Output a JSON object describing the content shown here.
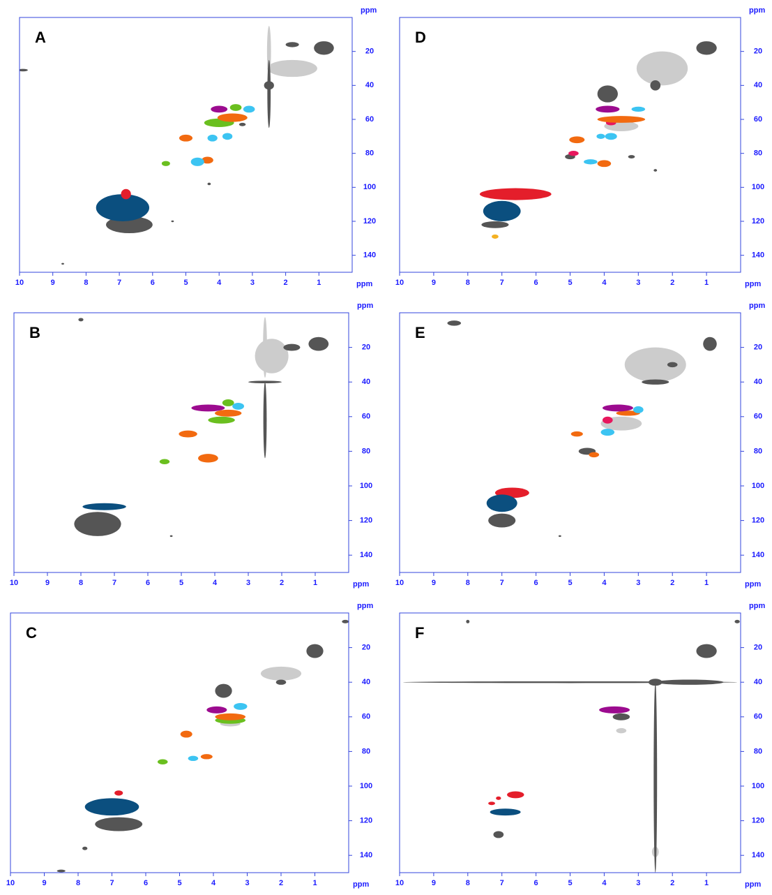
{
  "chart_data": [
    {
      "type": "scatter",
      "title": "A",
      "x_label": "ppm",
      "y_label": "ppm",
      "xlim": [
        10,
        0
      ],
      "ylim": [
        0,
        150
      ],
      "xticks": [
        10,
        9,
        8,
        7,
        6,
        5,
        4,
        3,
        2,
        1
      ],
      "yticks": [
        20,
        40,
        60,
        80,
        100,
        120,
        140
      ],
      "series": [
        {
          "color": "#cccccc",
          "x": [
            1.8,
            2.5
          ],
          "y": [
            30,
            20
          ],
          "xspan": [
            1.5,
            0.12
          ],
          "yspan": [
            10,
            30
          ]
        },
        {
          "color": "#555555",
          "x": [
            6.7,
            2.5,
            2.5,
            0.85,
            1.8,
            9.9,
            3.3,
            4.3,
            5.4,
            8.7
          ],
          "y": [
            122,
            45,
            40,
            18,
            16,
            31,
            63,
            98,
            120,
            145
          ],
          "xspan": [
            1.4,
            0.1,
            0.3,
            0.6,
            0.4,
            0.3,
            0.2,
            0.1,
            0.08,
            0.08
          ],
          "yspan": [
            10,
            40,
            5,
            8,
            3,
            1.5,
            2,
            1.5,
            1,
            1
          ]
        },
        {
          "color": "#0b4f7f",
          "x": [
            6.9
          ],
          "y": [
            112
          ],
          "xspan": [
            1.6
          ],
          "yspan": [
            16
          ]
        },
        {
          "color": "#e41e2b",
          "x": [
            6.8
          ],
          "y": [
            104
          ],
          "xspan": [
            0.3
          ],
          "yspan": [
            6
          ]
        },
        {
          "color": "#6abf1f",
          "x": [
            5.6,
            4.0,
            3.5
          ],
          "y": [
            86,
            62,
            53
          ],
          "xspan": [
            0.25,
            0.9,
            0.35
          ],
          "yspan": [
            3,
            5,
            4
          ]
        },
        {
          "color": "#f26a10",
          "x": [
            5.0,
            4.35,
            3.6
          ],
          "y": [
            71,
            84,
            59
          ],
          "xspan": [
            0.4,
            0.35,
            0.9
          ],
          "yspan": [
            4,
            4,
            5
          ]
        },
        {
          "color": "#3cc4f2",
          "x": [
            4.65,
            4.2,
            3.75,
            3.1
          ],
          "y": [
            85,
            71,
            70,
            54
          ],
          "xspan": [
            0.4,
            0.3,
            0.3,
            0.35
          ],
          "yspan": [
            5,
            4,
            4,
            4
          ]
        },
        {
          "color": "#9c0b8f",
          "x": [
            4.0
          ],
          "y": [
            54
          ],
          "xspan": [
            0.5
          ],
          "yspan": [
            4
          ]
        }
      ]
    },
    {
      "type": "scatter",
      "title": "B",
      "x_label": "ppm",
      "y_label": "ppm",
      "xlim": [
        10,
        0
      ],
      "ylim": [
        0,
        150
      ],
      "xticks": [
        10,
        9,
        8,
        7,
        6,
        5,
        4,
        3,
        2,
        1
      ],
      "yticks": [
        20,
        40,
        60,
        80,
        100,
        120,
        140
      ],
      "series": [
        {
          "color": "#cccccc",
          "x": [
            2.3,
            2.5
          ],
          "y": [
            25,
            20
          ],
          "xspan": [
            1.0,
            0.12
          ],
          "yspan": [
            20,
            35
          ]
        },
        {
          "color": "#555555",
          "x": [
            7.5,
            2.5,
            2.5,
            0.9,
            1.7,
            8.0,
            5.3
          ],
          "y": [
            122,
            62,
            40,
            18,
            20,
            4,
            129
          ],
          "xspan": [
            1.4,
            0.1,
            1.0,
            0.6,
            0.5,
            0.15,
            0.08
          ],
          "yspan": [
            14,
            44,
            1.5,
            8,
            4,
            2,
            1
          ]
        },
        {
          "color": "#0b4f7f",
          "x": [
            7.3
          ],
          "y": [
            112
          ],
          "xspan": [
            1.3
          ],
          "yspan": [
            4
          ]
        },
        {
          "color": "#6abf1f",
          "x": [
            5.5,
            3.8,
            3.6
          ],
          "y": [
            86,
            62,
            52
          ],
          "xspan": [
            0.3,
            0.8,
            0.35
          ],
          "yspan": [
            3,
            4,
            4
          ]
        },
        {
          "color": "#f26a10",
          "x": [
            4.8,
            4.2,
            3.6
          ],
          "y": [
            70,
            84,
            58
          ],
          "xspan": [
            0.55,
            0.6,
            0.8
          ],
          "yspan": [
            4,
            5,
            4
          ]
        },
        {
          "color": "#3cc4f2",
          "x": [
            3.3
          ],
          "y": [
            54
          ],
          "xspan": [
            0.35
          ],
          "yspan": [
            4
          ]
        },
        {
          "color": "#9c0b8f",
          "x": [
            4.2
          ],
          "y": [
            55
          ],
          "xspan": [
            1.0
          ],
          "yspan": [
            4
          ]
        }
      ]
    },
    {
      "type": "scatter",
      "title": "C",
      "x_label": "ppm",
      "y_label": "ppm",
      "xlim": [
        10,
        0
      ],
      "ylim": [
        0,
        150
      ],
      "xticks": [
        10,
        9,
        8,
        7,
        6,
        5,
        4,
        3,
        2,
        1
      ],
      "yticks": [
        20,
        40,
        60,
        80,
        100,
        120,
        140
      ],
      "series": [
        {
          "color": "#cccccc",
          "x": [
            2.0,
            3.5
          ],
          "y": [
            35,
            64
          ],
          "xspan": [
            1.2,
            0.6
          ],
          "yspan": [
            8,
            3
          ]
        },
        {
          "color": "#555555",
          "x": [
            6.8,
            3.7,
            8.5,
            7.8,
            1.0,
            0.1,
            2.0
          ],
          "y": [
            122,
            45,
            149,
            136,
            22,
            5,
            40
          ],
          "xspan": [
            1.4,
            0.5,
            0.25,
            0.15,
            0.5,
            0.2,
            0.3
          ],
          "yspan": [
            8,
            8,
            1.5,
            2,
            8,
            2,
            3
          ]
        },
        {
          "color": "#0b4f7f",
          "x": [
            7.0
          ],
          "y": [
            112
          ],
          "xspan": [
            1.6
          ],
          "yspan": [
            10
          ]
        },
        {
          "color": "#e41e2b",
          "x": [
            6.8
          ],
          "y": [
            104
          ],
          "xspan": [
            0.25
          ],
          "yspan": [
            3
          ]
        },
        {
          "color": "#6abf1f",
          "x": [
            5.5,
            3.5
          ],
          "y": [
            86,
            62
          ],
          "xspan": [
            0.3,
            0.9
          ],
          "yspan": [
            3,
            4
          ]
        },
        {
          "color": "#f26a10",
          "x": [
            4.8,
            4.2,
            3.5
          ],
          "y": [
            70,
            83,
            60
          ],
          "xspan": [
            0.35,
            0.35,
            0.9
          ],
          "yspan": [
            4,
            3,
            4
          ]
        },
        {
          "color": "#3cc4f2",
          "x": [
            4.6,
            3.2
          ],
          "y": [
            84,
            54
          ],
          "xspan": [
            0.3,
            0.4
          ],
          "yspan": [
            3,
            4
          ]
        },
        {
          "color": "#9c0b8f",
          "x": [
            3.9
          ],
          "y": [
            56
          ],
          "xspan": [
            0.6
          ],
          "yspan": [
            4
          ]
        }
      ]
    },
    {
      "type": "scatter",
      "title": "D",
      "x_label": "ppm",
      "y_label": "ppm",
      "xlim": [
        10,
        0
      ],
      "ylim": [
        0,
        150
      ],
      "xticks": [
        10,
        9,
        8,
        7,
        6,
        5,
        4,
        3,
        2,
        1
      ],
      "yticks": [
        20,
        40,
        60,
        80,
        100,
        120,
        140
      ],
      "series": [
        {
          "color": "#cccccc",
          "x": [
            2.3,
            3.5
          ],
          "y": [
            30,
            64
          ],
          "xspan": [
            1.5,
            1.0
          ],
          "yspan": [
            20,
            6
          ]
        },
        {
          "color": "#555555",
          "x": [
            7.2,
            3.9,
            5.0,
            2.5,
            1.0,
            3.2,
            2.5
          ],
          "y": [
            122,
            45,
            82,
            40,
            18,
            82,
            90
          ],
          "xspan": [
            0.8,
            0.6,
            0.3,
            0.3,
            0.6,
            0.2,
            0.1
          ],
          "yspan": [
            4,
            10,
            3,
            6,
            8,
            2,
            1.5
          ]
        },
        {
          "color": "#e41e2b",
          "x": [
            6.6
          ],
          "y": [
            104
          ],
          "xspan": [
            2.1
          ],
          "yspan": [
            7
          ]
        },
        {
          "color": "#0b4f7f",
          "x": [
            7.0
          ],
          "y": [
            114
          ],
          "xspan": [
            1.1
          ],
          "yspan": [
            12
          ]
        },
        {
          "color": "#f4b122",
          "x": [
            7.2
          ],
          "y": [
            129
          ],
          "xspan": [
            0.2
          ],
          "yspan": [
            2.5
          ]
        },
        {
          "color": "#e8175d",
          "x": [
            4.9,
            3.8
          ],
          "y": [
            80,
            62
          ],
          "xspan": [
            0.3,
            0.3
          ],
          "yspan": [
            3,
            3
          ]
        },
        {
          "color": "#f26a10",
          "x": [
            4.8,
            4.0,
            3.5
          ],
          "y": [
            72,
            86,
            60
          ],
          "xspan": [
            0.45,
            0.4,
            1.4
          ],
          "yspan": [
            4,
            4,
            4
          ]
        },
        {
          "color": "#3cc4f2",
          "x": [
            4.4,
            3.8,
            4.1,
            3.0
          ],
          "y": [
            85,
            70,
            70,
            54
          ],
          "xspan": [
            0.4,
            0.35,
            0.25,
            0.4
          ],
          "yspan": [
            3,
            4,
            3,
            3
          ]
        },
        {
          "color": "#9c0b8f",
          "x": [
            3.9
          ],
          "y": [
            54
          ],
          "xspan": [
            0.7
          ],
          "yspan": [
            4
          ]
        }
      ]
    },
    {
      "type": "scatter",
      "title": "E",
      "x_label": "ppm",
      "y_label": "ppm",
      "xlim": [
        10,
        0
      ],
      "ylim": [
        0,
        150
      ],
      "xticks": [
        10,
        9,
        8,
        7,
        6,
        5,
        4,
        3,
        2,
        1
      ],
      "yticks": [
        20,
        40,
        60,
        80,
        100,
        120,
        140
      ],
      "series": [
        {
          "color": "#cccccc",
          "x": [
            2.5,
            3.5
          ],
          "y": [
            30,
            64
          ],
          "xspan": [
            1.8,
            1.2
          ],
          "yspan": [
            20,
            8
          ]
        },
        {
          "color": "#555555",
          "x": [
            7.0,
            8.4,
            2.5,
            2.0,
            0.9,
            4.5,
            5.3
          ],
          "y": [
            120,
            6,
            40,
            30,
            18,
            80,
            129
          ],
          "xspan": [
            0.8,
            0.4,
            0.8,
            0.3,
            0.4,
            0.5,
            0.08
          ],
          "yspan": [
            8,
            3,
            3,
            3,
            8,
            4,
            1
          ]
        },
        {
          "color": "#e41e2b",
          "x": [
            6.7
          ],
          "y": [
            104
          ],
          "xspan": [
            1.0
          ],
          "yspan": [
            6
          ]
        },
        {
          "color": "#0b4f7f",
          "x": [
            7.0
          ],
          "y": [
            110
          ],
          "xspan": [
            0.9
          ],
          "yspan": [
            10
          ]
        },
        {
          "color": "#e8175d",
          "x": [
            3.9
          ],
          "y": [
            62
          ],
          "xspan": [
            0.3
          ],
          "yspan": [
            4
          ]
        },
        {
          "color": "#f26a10",
          "x": [
            4.8,
            4.3,
            3.3
          ],
          "y": [
            70,
            82,
            58
          ],
          "xspan": [
            0.35,
            0.3,
            0.7
          ],
          "yspan": [
            3,
            3,
            3
          ]
        },
        {
          "color": "#3cc4f2",
          "x": [
            3.9,
            3.0
          ],
          "y": [
            69,
            56
          ],
          "xspan": [
            0.4,
            0.3
          ],
          "yspan": [
            4,
            4
          ]
        },
        {
          "color": "#9c0b8f",
          "x": [
            3.6
          ],
          "y": [
            55
          ],
          "xspan": [
            0.9
          ],
          "yspan": [
            4
          ]
        }
      ]
    },
    {
      "type": "scatter",
      "title": "F",
      "x_label": "ppm",
      "y_label": "ppm",
      "xlim": [
        10,
        0
      ],
      "ylim": [
        0,
        150
      ],
      "xticks": [
        10,
        9,
        8,
        7,
        6,
        5,
        4,
        3,
        2,
        1
      ],
      "yticks": [
        20,
        40,
        60,
        80,
        100,
        120,
        140
      ],
      "series": [
        {
          "color": "#cccccc",
          "x": [
            2.5,
            3.5
          ],
          "y": [
            138,
            68
          ],
          "xspan": [
            0.2,
            0.3
          ],
          "yspan": [
            6,
            3
          ]
        },
        {
          "color": "#555555",
          "x": [
            5.0,
            1.5,
            2.5,
            2.5,
            7.1,
            8.0,
            1.0,
            3.5,
            0.1
          ],
          "y": [
            40,
            40,
            95,
            40,
            128,
            5,
            22,
            60,
            5
          ],
          "xspan": [
            9.8,
            2.0,
            0.1,
            0.4,
            0.3,
            0.1,
            0.6,
            0.5,
            0.15
          ],
          "yspan": [
            1,
            3,
            110,
            4,
            4,
            2,
            8,
            4,
            2
          ]
        },
        {
          "color": "#e41e2b",
          "x": [
            6.6,
            7.1,
            7.3
          ],
          "y": [
            105,
            107,
            110
          ],
          "xspan": [
            0.5,
            0.15,
            0.2
          ],
          "yspan": [
            4,
            2,
            2
          ]
        },
        {
          "color": "#0b4f7f",
          "x": [
            6.9
          ],
          "y": [
            115
          ],
          "xspan": [
            0.9
          ],
          "yspan": [
            4
          ]
        },
        {
          "color": "#9c0b8f",
          "x": [
            3.7
          ],
          "y": [
            56
          ],
          "xspan": [
            0.9
          ],
          "yspan": [
            4
          ]
        }
      ]
    }
  ]
}
